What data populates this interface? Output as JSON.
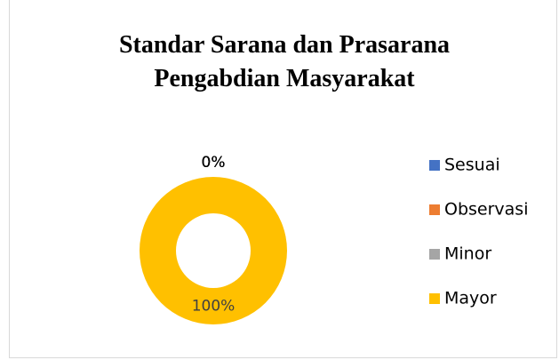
{
  "chart_data": {
    "type": "donut",
    "title": "Standar Sarana dan Prasarana Pengabdian Masyarakat",
    "categories": [
      "Sesuai",
      "Observasi",
      "Minor",
      "Mayor"
    ],
    "values": [
      0,
      0,
      0,
      100
    ],
    "value_labels": [
      "0%",
      "0%",
      "0%",
      "100%"
    ],
    "colors": [
      "#4472c4",
      "#ed7d31",
      "#a5a5a5",
      "#ffc000"
    ],
    "legend": "right"
  }
}
